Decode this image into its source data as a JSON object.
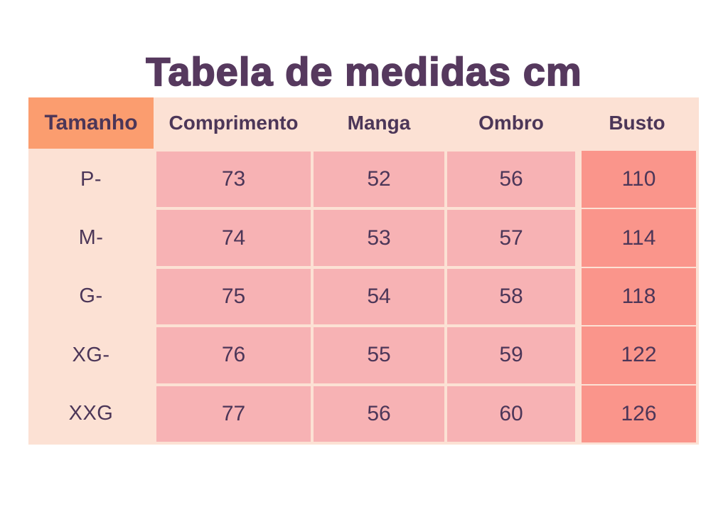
{
  "title": "Tabela de medidas cm",
  "table": {
    "header": [
      "Tamanho",
      "Comprimento",
      "Manga",
      "Ombro",
      "Busto"
    ],
    "rows": [
      {
        "size": "P-",
        "values": [
          "73",
          "52",
          "56",
          "110"
        ]
      },
      {
        "size": "M-",
        "values": [
          "74",
          "53",
          "57",
          "114"
        ]
      },
      {
        "size": "G-",
        "values": [
          "75",
          "54",
          "58",
          "118"
        ]
      },
      {
        "size": "XG-",
        "values": [
          "76",
          "55",
          "59",
          "122"
        ]
      },
      {
        "size": "XXG",
        "values": [
          "77",
          "56",
          "60",
          "126"
        ]
      }
    ]
  },
  "colors": {
    "page_bg": "#ffffff",
    "title_text": "#56395e",
    "cell_text": "#4c3658",
    "table_bg": "#fce1d4",
    "tamanho_header_bg": "#fb9d6f",
    "data_cell_bg": "#f7b2b4",
    "busto_cell_bg": "#fa958b"
  },
  "chart_data": {
    "type": "table",
    "title": "Tabela de medidas cm",
    "unit": "cm",
    "columns": [
      "Tamanho",
      "Comprimento",
      "Manga",
      "Ombro",
      "Busto"
    ],
    "rows": [
      [
        "P-",
        73,
        52,
        56,
        110
      ],
      [
        "M-",
        74,
        53,
        57,
        114
      ],
      [
        "G-",
        75,
        54,
        58,
        118
      ],
      [
        "XG-",
        76,
        55,
        59,
        122
      ],
      [
        "XXG",
        77,
        56,
        60,
        126
      ]
    ]
  }
}
